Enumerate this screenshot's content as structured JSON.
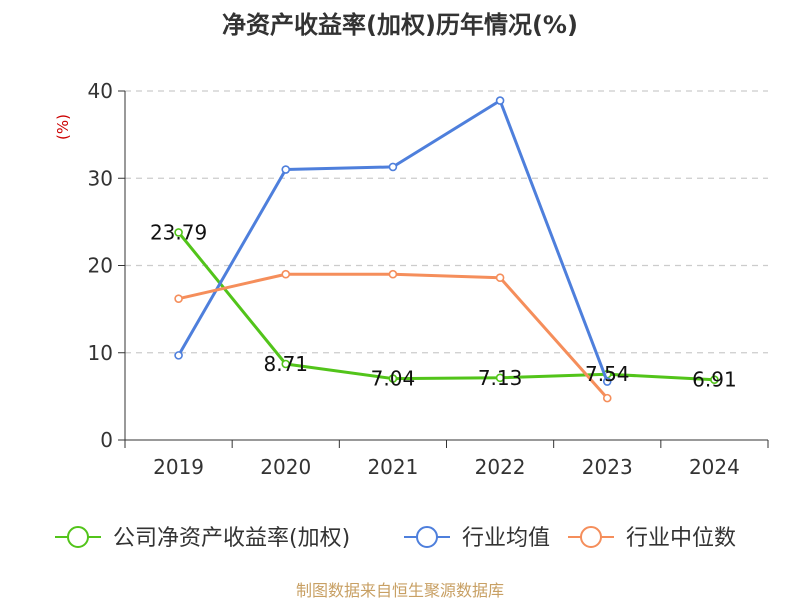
{
  "chart_data": {
    "type": "line",
    "title": "净资产收益率(加权)历年情况(%)",
    "ylabel": "(%)",
    "categories": [
      "2019",
      "2020",
      "2021",
      "2022",
      "2023",
      "2024"
    ],
    "ylim": [
      0,
      40
    ],
    "yticks": [
      0,
      10,
      20,
      30,
      40
    ],
    "grid": true,
    "legend_position": "bottom",
    "series": [
      {
        "name": "公司净资产收益率(加权)",
        "color": "#52c41a",
        "show_labels": true,
        "values": [
          23.79,
          8.71,
          7.04,
          7.13,
          7.54,
          6.91
        ]
      },
      {
        "name": "行业均值",
        "color": "#4e7fdc",
        "show_labels": false,
        "values": [
          9.7,
          31.0,
          31.3,
          38.9,
          6.7,
          null
        ]
      },
      {
        "name": "行业中位数",
        "color": "#f58e5b",
        "show_labels": false,
        "values": [
          16.2,
          19.0,
          19.0,
          18.6,
          4.8,
          null
        ]
      }
    ]
  },
  "colors": {
    "ylabel": "#cc0000",
    "source": "#c8a064",
    "axis": "#333333",
    "grid": "#cccccc"
  },
  "source_text": "制图数据来自恒生聚源数据库"
}
